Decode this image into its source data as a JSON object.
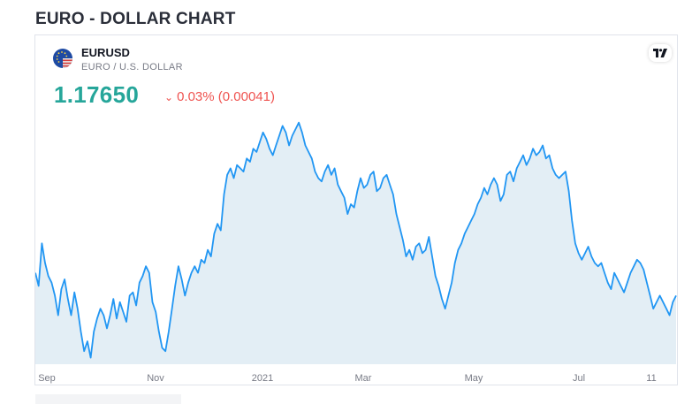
{
  "page": {
    "title": "EURO - DOLLAR CHART"
  },
  "widget": {
    "symbol": "EURUSD",
    "description": "EURO / U.S. DOLLAR",
    "price": "1.17650",
    "change": "0.03% (0.00041)",
    "change_direction": "down",
    "icons": {
      "flag": "eu-us-flag-icon",
      "logo": "tradingview-logo-icon",
      "change": "chevron-down-icon"
    },
    "colors": {
      "price": "#26a69a",
      "change": "#ef5350",
      "line": "#2196f3",
      "area": "#e3eef5"
    }
  },
  "chart_data": {
    "type": "area",
    "title": "",
    "xlabel": "",
    "ylabel": "",
    "x_ticks": [
      "Sep",
      "Nov",
      "2021",
      "Mar",
      "May",
      "Jul",
      "11"
    ],
    "grid": false,
    "ylim": [
      1.155,
      1.23
    ],
    "series": [
      {
        "values": [
          1.183,
          1.179,
          1.192,
          1.186,
          1.182,
          1.18,
          1.176,
          1.17,
          1.178,
          1.181,
          1.175,
          1.17,
          1.177,
          1.172,
          1.165,
          1.159,
          1.162,
          1.157,
          1.165,
          1.169,
          1.172,
          1.17,
          1.166,
          1.17,
          1.175,
          1.169,
          1.174,
          1.171,
          1.168,
          1.176,
          1.177,
          1.173,
          1.18,
          1.182,
          1.185,
          1.183,
          1.174,
          1.171,
          1.165,
          1.16,
          1.159,
          1.165,
          1.172,
          1.179,
          1.185,
          1.181,
          1.176,
          1.18,
          1.183,
          1.185,
          1.183,
          1.187,
          1.186,
          1.19,
          1.188,
          1.195,
          1.198,
          1.196,
          1.207,
          1.213,
          1.215,
          1.212,
          1.216,
          1.215,
          1.214,
          1.218,
          1.217,
          1.221,
          1.22,
          1.223,
          1.226,
          1.224,
          1.221,
          1.219,
          1.222,
          1.225,
          1.228,
          1.226,
          1.222,
          1.225,
          1.227,
          1.229,
          1.226,
          1.222,
          1.22,
          1.218,
          1.214,
          1.212,
          1.211,
          1.214,
          1.216,
          1.213,
          1.215,
          1.21,
          1.208,
          1.206,
          1.201,
          1.204,
          1.203,
          1.208,
          1.212,
          1.209,
          1.21,
          1.213,
          1.214,
          1.208,
          1.209,
          1.212,
          1.213,
          1.21,
          1.207,
          1.201,
          1.197,
          1.193,
          1.188,
          1.19,
          1.187,
          1.191,
          1.192,
          1.189,
          1.19,
          1.194,
          1.188,
          1.182,
          1.179,
          1.175,
          1.172,
          1.176,
          1.18,
          1.186,
          1.19,
          1.192,
          1.195,
          1.197,
          1.199,
          1.201,
          1.204,
          1.206,
          1.209,
          1.207,
          1.21,
          1.212,
          1.21,
          1.205,
          1.207,
          1.213,
          1.214,
          1.211,
          1.215,
          1.217,
          1.219,
          1.216,
          1.218,
          1.221,
          1.219,
          1.22,
          1.222,
          1.218,
          1.219,
          1.215,
          1.213,
          1.212,
          1.213,
          1.214,
          1.208,
          1.199,
          1.192,
          1.189,
          1.187,
          1.189,
          1.191,
          1.188,
          1.186,
          1.185,
          1.186,
          1.183,
          1.18,
          1.178,
          1.183,
          1.181,
          1.179,
          1.177,
          1.18,
          1.183,
          1.185,
          1.187,
          1.186,
          1.184,
          1.18,
          1.176,
          1.172,
          1.174,
          1.176,
          1.174,
          1.172,
          1.17,
          1.174,
          1.176
        ]
      }
    ]
  }
}
